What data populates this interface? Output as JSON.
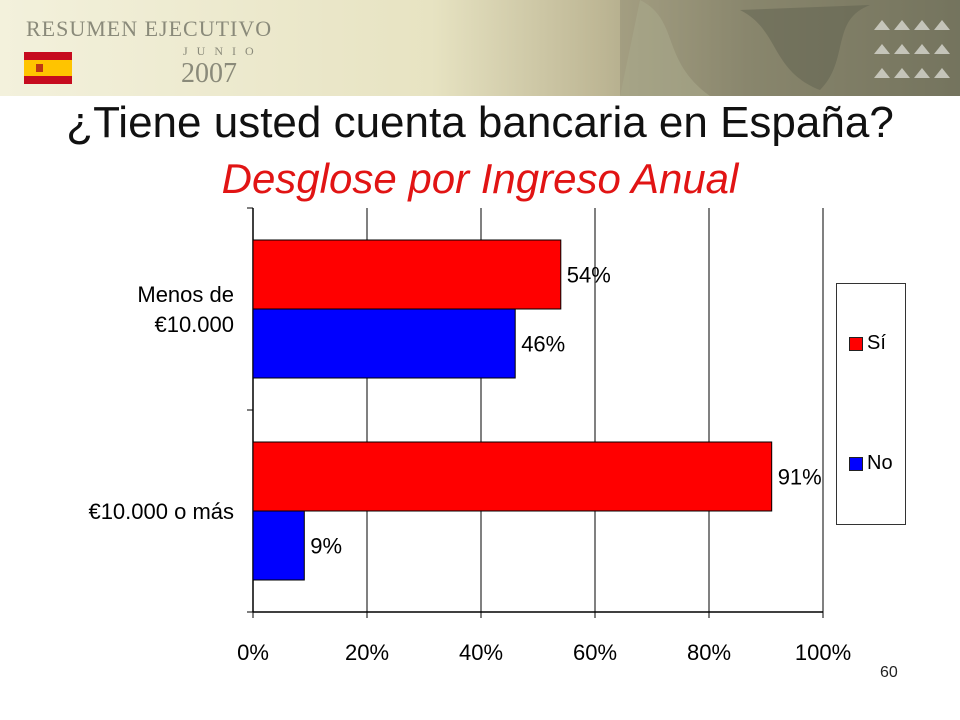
{
  "header": {
    "title": "RESUMEN EJECUTIVO",
    "month": "JUNIO",
    "year": "2007",
    "flag_icon": "spain-flag-icon"
  },
  "colors": {
    "si": "#ff0000",
    "no": "#0000ff",
    "subtitle": "#e11414"
  },
  "page_number": "60",
  "chart_data": {
    "type": "bar",
    "orientation": "horizontal",
    "title": "¿Tiene usted cuenta bancaria en España?",
    "subtitle": "Desglose por Ingreso Anual",
    "categories": [
      "Menos de €10.000",
      "€10.000 o más"
    ],
    "category_lines": [
      [
        "Menos de",
        "€10.000"
      ],
      [
        "€10.000 o más"
      ]
    ],
    "series": [
      {
        "name": "Sí",
        "values": [
          54,
          91
        ],
        "labels": [
          "54%",
          "91%"
        ]
      },
      {
        "name": "No",
        "values": [
          46,
          9
        ],
        "labels": [
          "46%",
          "9%"
        ]
      }
    ],
    "xlim": [
      0,
      100
    ],
    "x_ticks": [
      "0%",
      "20%",
      "40%",
      "60%",
      "80%",
      "100%"
    ],
    "grid": true,
    "legend_position": "right"
  }
}
